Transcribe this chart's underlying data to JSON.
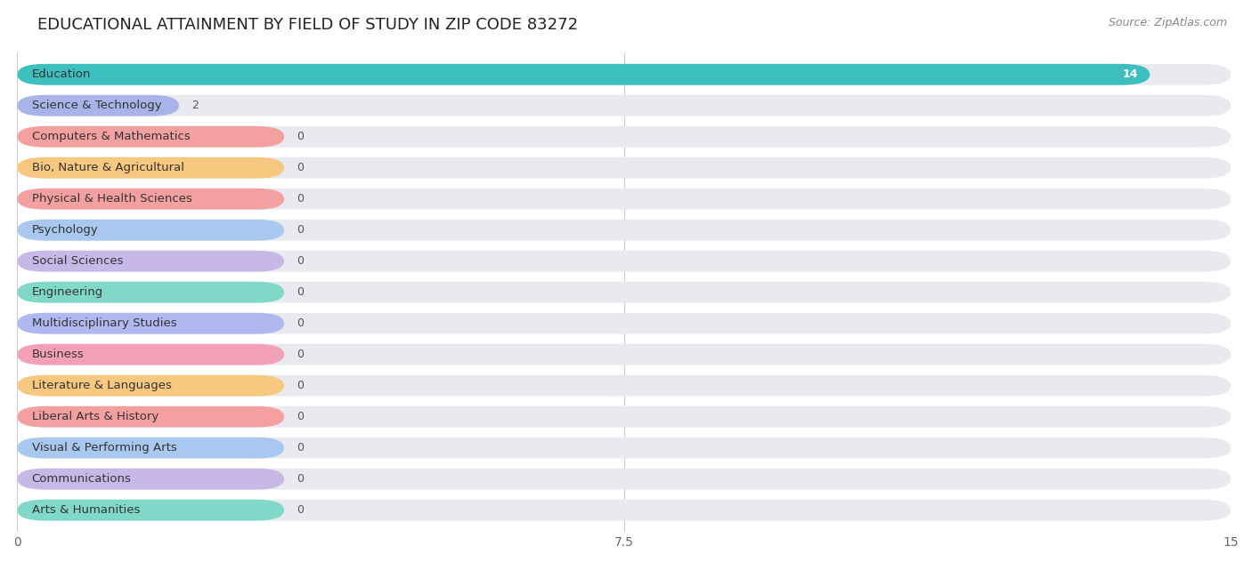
{
  "title": "EDUCATIONAL ATTAINMENT BY FIELD OF STUDY IN ZIP CODE 83272",
  "source": "Source: ZipAtlas.com",
  "categories": [
    "Education",
    "Science & Technology",
    "Computers & Mathematics",
    "Bio, Nature & Agricultural",
    "Physical & Health Sciences",
    "Psychology",
    "Social Sciences",
    "Engineering",
    "Multidisciplinary Studies",
    "Business",
    "Literature & Languages",
    "Liberal Arts & History",
    "Visual & Performing Arts",
    "Communications",
    "Arts & Humanities"
  ],
  "values": [
    14,
    2,
    0,
    0,
    0,
    0,
    0,
    0,
    0,
    0,
    0,
    0,
    0,
    0,
    0
  ],
  "bar_colors": [
    "#3dbfbf",
    "#a8b4e8",
    "#f4a0a0",
    "#f8c880",
    "#f4a0a0",
    "#a8c8f0",
    "#c8b8e8",
    "#80d8c8",
    "#b0b8f0",
    "#f4a0b8",
    "#f8c880",
    "#f4a0a0",
    "#a8c8f0",
    "#c8b8e8",
    "#80d8c8"
  ],
  "bg_bar_color": "#e8eaf0",
  "xlim": [
    0,
    15
  ],
  "xticks": [
    0,
    7.5,
    15
  ],
  "background_color": "#ffffff",
  "title_fontsize": 13,
  "label_fontsize": 9.5,
  "value_fontsize": 9,
  "source_fontsize": 9
}
